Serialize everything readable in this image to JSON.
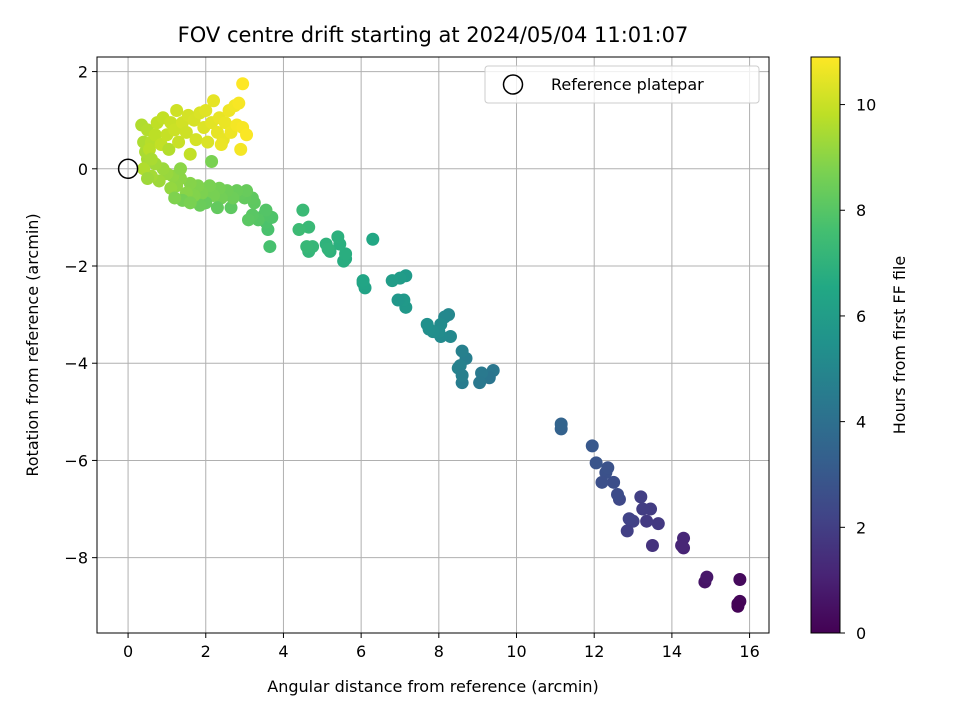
{
  "chart_data": {
    "type": "scatter",
    "title": "FOV centre drift starting at 2024/05/04 11:01:07",
    "xlabel": "Angular distance from reference (arcmin)",
    "ylabel": "Rotation from reference (arcmin)",
    "xlim": [
      -0.8,
      16.5
    ],
    "ylim": [
      -9.55,
      2.3
    ],
    "xticks": [
      0,
      2,
      4,
      6,
      8,
      10,
      12,
      14,
      16
    ],
    "yticks": [
      2,
      0,
      -2,
      -4,
      -6,
      -8
    ],
    "grid": true,
    "legend": {
      "label": "Reference platepar",
      "placement": "top-right"
    },
    "reference_point": {
      "x": 0,
      "y": 0
    },
    "colorbar": {
      "label": "Hours from first FF file",
      "range": [
        0,
        10.9
      ],
      "ticks": [
        0,
        2,
        4,
        6,
        8,
        10
      ],
      "colormap": "viridis"
    },
    "points": [
      [
        15.7,
        -8.95,
        0.1
      ],
      [
        15.75,
        -8.9,
        0.15
      ],
      [
        15.75,
        -8.45,
        0.25
      ],
      [
        15.7,
        -9.0,
        0.05
      ],
      [
        14.85,
        -8.5,
        0.6
      ],
      [
        14.9,
        -8.4,
        0.7
      ],
      [
        14.3,
        -7.8,
        1.1
      ],
      [
        14.3,
        -7.6,
        1.2
      ],
      [
        14.25,
        -7.75,
        1.15
      ],
      [
        13.5,
        -7.75,
        1.6
      ],
      [
        13.65,
        -7.3,
        1.8
      ],
      [
        13.45,
        -7.0,
        1.9
      ],
      [
        13.2,
        -6.75,
        2.0
      ],
      [
        13.25,
        -7.0,
        1.95
      ],
      [
        13.35,
        -7.25,
        1.85
      ],
      [
        13.0,
        -7.25,
        2.1
      ],
      [
        12.85,
        -7.45,
        2.05
      ],
      [
        12.9,
        -7.2,
        2.15
      ],
      [
        12.65,
        -6.8,
        2.4
      ],
      [
        12.6,
        -6.7,
        2.5
      ],
      [
        12.5,
        -6.45,
        2.6
      ],
      [
        12.3,
        -6.25,
        2.7
      ],
      [
        12.2,
        -6.45,
        2.65
      ],
      [
        12.35,
        -6.15,
        2.75
      ],
      [
        12.05,
        -6.05,
        2.85
      ],
      [
        11.95,
        -5.7,
        3.0
      ],
      [
        11.15,
        -5.35,
        3.4
      ],
      [
        11.15,
        -5.25,
        3.5
      ],
      [
        9.4,
        -4.15,
        4.3
      ],
      [
        9.3,
        -4.3,
        4.25
      ],
      [
        9.1,
        -4.2,
        4.4
      ],
      [
        9.05,
        -4.4,
        4.35
      ],
      [
        8.7,
        -3.9,
        4.6
      ],
      [
        8.6,
        -4.4,
        4.55
      ],
      [
        8.6,
        -3.75,
        4.7
      ],
      [
        8.5,
        -4.1,
        4.8
      ],
      [
        8.55,
        -4.05,
        4.75
      ],
      [
        8.6,
        -4.25,
        4.65
      ],
      [
        8.25,
        -3.0,
        5.0
      ],
      [
        8.15,
        -3.05,
        5.05
      ],
      [
        8.3,
        -3.45,
        5.1
      ],
      [
        8.05,
        -3.45,
        5.15
      ],
      [
        8.05,
        -3.2,
        5.2
      ],
      [
        8.0,
        -3.35,
        5.25
      ],
      [
        7.85,
        -3.35,
        5.3
      ],
      [
        7.75,
        -3.3,
        5.35
      ],
      [
        7.7,
        -3.2,
        5.4
      ],
      [
        7.15,
        -2.85,
        5.8
      ],
      [
        7.1,
        -2.7,
        5.85
      ],
      [
        7.15,
        -2.2,
        5.9
      ],
      [
        6.95,
        -2.7,
        5.75
      ],
      [
        7.0,
        -2.25,
        5.95
      ],
      [
        6.8,
        -2.3,
        6.0
      ],
      [
        6.1,
        -2.45,
        6.3
      ],
      [
        6.05,
        -2.35,
        6.35
      ],
      [
        6.05,
        -2.3,
        6.4
      ],
      [
        6.3,
        -1.45,
        6.5
      ],
      [
        5.6,
        -1.85,
        6.7
      ],
      [
        5.55,
        -1.9,
        6.75
      ],
      [
        5.6,
        -1.75,
        6.8
      ],
      [
        5.45,
        -1.55,
        6.85
      ],
      [
        5.4,
        -1.4,
        6.9
      ],
      [
        5.2,
        -1.7,
        6.95
      ],
      [
        5.1,
        -1.55,
        7.0
      ],
      [
        5.15,
        -1.65,
        7.05
      ],
      [
        4.65,
        -1.7,
        7.15
      ],
      [
        4.75,
        -1.6,
        7.2
      ],
      [
        4.6,
        -1.6,
        7.25
      ],
      [
        4.65,
        -1.2,
        7.3
      ],
      [
        4.5,
        -0.85,
        7.35
      ],
      [
        4.4,
        -1.25,
        7.4
      ],
      [
        3.65,
        -1.6,
        7.7
      ],
      [
        3.6,
        -1.25,
        7.75
      ],
      [
        3.55,
        -1.1,
        7.8
      ],
      [
        3.7,
        -1.0,
        7.85
      ],
      [
        3.5,
        -0.95,
        7.9
      ],
      [
        3.55,
        -0.85,
        7.95
      ],
      [
        3.35,
        -1.05,
        8.0
      ],
      [
        3.2,
        -0.95,
        8.05
      ],
      [
        3.1,
        -1.05,
        8.1
      ],
      [
        3.25,
        -0.7,
        8.15
      ],
      [
        3.2,
        -0.6,
        8.2
      ],
      [
        3.0,
        -0.6,
        8.25
      ],
      [
        2.9,
        -0.5,
        8.3
      ],
      [
        3.05,
        -0.45,
        8.35
      ],
      [
        2.8,
        -0.45,
        8.4
      ],
      [
        2.65,
        -0.8,
        8.15
      ],
      [
        2.7,
        -0.6,
        8.45
      ],
      [
        2.55,
        -0.45,
        8.5
      ],
      [
        2.4,
        -0.6,
        8.55
      ],
      [
        2.3,
        -0.8,
        8.25
      ],
      [
        2.35,
        -0.4,
        8.6
      ],
      [
        2.2,
        -0.55,
        8.65
      ],
      [
        2.1,
        -0.35,
        8.7
      ],
      [
        2.0,
        -0.7,
        8.35
      ],
      [
        1.9,
        -0.5,
        8.75
      ],
      [
        1.85,
        -0.75,
        8.4
      ],
      [
        1.8,
        -0.35,
        8.8
      ],
      [
        1.7,
        -0.55,
        8.85
      ],
      [
        1.6,
        -0.3,
        8.9
      ],
      [
        1.5,
        -0.5,
        8.95
      ],
      [
        1.4,
        -0.65,
        8.6
      ],
      [
        1.35,
        -0.2,
        9.0
      ],
      [
        1.25,
        -0.35,
        9.05
      ],
      [
        1.15,
        -0.15,
        9.1
      ],
      [
        1.1,
        -0.4,
        9.15
      ],
      [
        1.0,
        -0.1,
        9.2
      ],
      [
        0.9,
        0.0,
        9.25
      ],
      [
        0.8,
        -0.25,
        9.3
      ],
      [
        0.7,
        0.1,
        9.35
      ],
      [
        0.6,
        -0.15,
        9.4
      ],
      [
        0.5,
        0.2,
        9.45
      ],
      [
        0.45,
        0.35,
        9.5
      ],
      [
        0.4,
        0.55,
        9.55
      ],
      [
        0.35,
        0.9,
        9.6
      ],
      [
        0.5,
        0.8,
        9.65
      ],
      [
        0.6,
        0.55,
        9.7
      ],
      [
        0.55,
        0.4,
        9.75
      ],
      [
        0.7,
        0.7,
        9.8
      ],
      [
        0.75,
        0.95,
        9.85
      ],
      [
        0.85,
        0.5,
        9.9
      ],
      [
        0.9,
        1.05,
        9.9
      ],
      [
        1.0,
        0.7,
        9.95
      ],
      [
        1.05,
        0.4,
        9.65
      ],
      [
        1.1,
        0.95,
        10.0
      ],
      [
        1.2,
        0.8,
        10.05
      ],
      [
        1.25,
        1.2,
        10.1
      ],
      [
        1.3,
        0.55,
        10.0
      ],
      [
        1.4,
        0.95,
        10.15
      ],
      [
        1.5,
        0.75,
        10.1
      ],
      [
        1.55,
        1.1,
        10.2
      ],
      [
        1.7,
        1.0,
        10.25
      ],
      [
        1.75,
        0.6,
        10.2
      ],
      [
        1.85,
        1.15,
        10.3
      ],
      [
        1.95,
        0.85,
        10.35
      ],
      [
        2.0,
        1.2,
        10.4
      ],
      [
        2.05,
        0.55,
        10.3
      ],
      [
        2.15,
        0.95,
        10.45
      ],
      [
        2.2,
        1.4,
        10.5
      ],
      [
        2.3,
        0.75,
        10.5
      ],
      [
        2.35,
        1.05,
        10.55
      ],
      [
        2.45,
        0.6,
        10.55
      ],
      [
        2.5,
        0.95,
        10.6
      ],
      [
        2.6,
        1.2,
        10.65
      ],
      [
        2.65,
        0.75,
        10.65
      ],
      [
        2.75,
        1.3,
        10.7
      ],
      [
        2.8,
        0.9,
        10.75
      ],
      [
        2.85,
        1.35,
        10.8
      ],
      [
        2.9,
        0.4,
        10.75
      ],
      [
        2.95,
        0.85,
        10.8
      ],
      [
        3.05,
        0.7,
        10.85
      ],
      [
        2.95,
        1.75,
        10.9
      ],
      [
        2.4,
        0.5,
        10.6
      ],
      [
        1.6,
        0.3,
        9.9
      ],
      [
        0.4,
        0.0,
        9.6
      ],
      [
        0.6,
        0.2,
        9.5
      ],
      [
        0.5,
        -0.2,
        9.3
      ],
      [
        1.2,
        -0.6,
        8.8
      ],
      [
        1.6,
        -0.7,
        8.7
      ],
      [
        2.15,
        0.15,
        8.7
      ],
      [
        1.35,
        0.0,
        9.0
      ]
    ]
  }
}
